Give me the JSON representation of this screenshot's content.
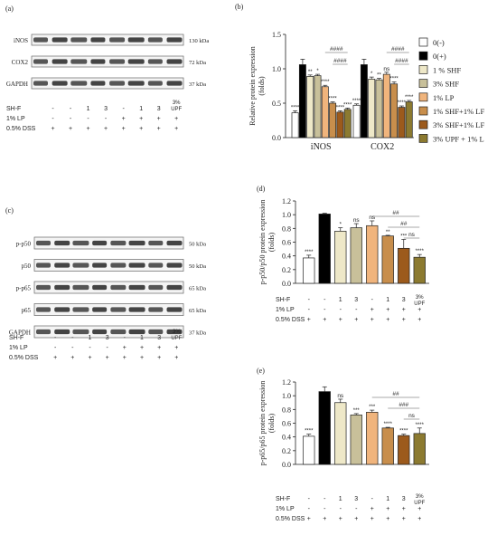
{
  "panels": {
    "a": {
      "label": "(a)",
      "bands": [
        {
          "name": "iNOS",
          "kda": "130 kDa"
        },
        {
          "name": "COX2",
          "kda": "72 kDa"
        },
        {
          "name": "GAPDH",
          "kda": "37 kDa"
        }
      ],
      "row_labels": [
        "SH-F",
        "1% LP",
        "0.5% DSS"
      ],
      "rows": [
        [
          "-",
          "-",
          "-",
          "1",
          "3",
          "-",
          "1",
          "3",
          "3%\nUPF"
        ],
        [
          "-",
          "-",
          "-",
          "-",
          "-",
          "+",
          "+",
          "+",
          "+"
        ],
        [
          "-",
          "+",
          "+",
          "+",
          "+",
          "+",
          "+",
          "+",
          "+"
        ]
      ]
    },
    "c": {
      "label": "(c)",
      "bands": [
        {
          "name": "p-p50",
          "kda": "50 kDa"
        },
        {
          "name": "p50",
          "kda": "50 kDa"
        },
        {
          "name": "p-p65",
          "kda": "65 kDa"
        },
        {
          "name": "p65",
          "kda": "65 kDa"
        },
        {
          "name": "GAPDH",
          "kda": "37 kDa"
        }
      ],
      "row_labels": [
        "SH-F",
        "1% LP",
        "0.5% DSS"
      ],
      "rows": [
        [
          "-",
          "-",
          "-",
          "1",
          "3",
          "-",
          "1",
          "3",
          "3%\nUPF"
        ],
        [
          "-",
          "-",
          "-",
          "-",
          "-",
          "+",
          "+",
          "+",
          "+"
        ],
        [
          "-",
          "+",
          "+",
          "+",
          "+",
          "+",
          "+",
          "+",
          "+"
        ]
      ]
    },
    "b": {
      "label": "(b)"
    },
    "d": {
      "label": "(d)"
    },
    "e": {
      "label": "(e)"
    }
  },
  "legend": {
    "entries": [
      "0(-)",
      "0(+)",
      "1 % SHF",
      "3% SHF",
      "1% LP",
      "1% SHF+1% LF",
      "3% SHF+1% LF",
      "3% UPF + 1% L"
    ]
  },
  "colors": [
    "#ffffff",
    "#000000",
    "#eee8c8",
    "#c8c09a",
    "#f0b47c",
    "#c88e4c",
    "#9c5a1c",
    "#8c7a30"
  ],
  "chart_data": [
    {
      "id": "b",
      "type": "bar",
      "categories": [
        "iNOS",
        "COX2"
      ],
      "ylabel": "Relative protein expression\n(folds)",
      "ylim": [
        0,
        1.5
      ],
      "yticks": [
        "0.0",
        "0.5",
        "1.0",
        "1.5"
      ],
      "series": [
        {
          "name": "0(-)",
          "values": [
            0.36,
            0.47
          ],
          "err": [
            0.03,
            0.02
          ],
          "sig": [
            "****",
            "****"
          ]
        },
        {
          "name": "0(+)",
          "values": [
            1.06,
            1.06
          ],
          "err": [
            0.08,
            0.08
          ],
          "sig": [
            "",
            ""
          ]
        },
        {
          "name": "1 % SHF",
          "values": [
            0.89,
            0.85
          ],
          "err": [
            0.02,
            0.03
          ],
          "sig": [
            "**",
            "*"
          ]
        },
        {
          "name": "3% SHF",
          "values": [
            0.9,
            0.84
          ],
          "err": [
            0.02,
            0.02
          ],
          "sig": [
            "*",
            "**"
          ]
        },
        {
          "name": "1% LP",
          "values": [
            0.74,
            0.92
          ],
          "err": [
            0.02,
            0.03
          ],
          "sig": [
            "****",
            "ns"
          ]
        },
        {
          "name": "1% SHF+1% LF",
          "values": [
            0.5,
            0.78
          ],
          "err": [
            0.02,
            0.03
          ],
          "sig": [
            "****",
            "****"
          ]
        },
        {
          "name": "3% SHF+1% LF",
          "values": [
            0.37,
            0.44
          ],
          "err": [
            0.02,
            0.02
          ],
          "sig": [
            "****",
            "****"
          ]
        },
        {
          "name": "3% UPF + 1% L",
          "values": [
            0.41,
            0.52
          ],
          "err": [
            0.02,
            0.02
          ],
          "sig": [
            "****",
            "****"
          ]
        }
      ],
      "brackets": [
        {
          "group": 0,
          "from": 4,
          "to": 7,
          "label": "####"
        },
        {
          "group": 0,
          "from": 5,
          "to": 7,
          "label": "####"
        },
        {
          "group": 1,
          "from": 4,
          "to": 7,
          "label": "####"
        },
        {
          "group": 1,
          "from": 5,
          "to": 7,
          "label": "####"
        }
      ]
    },
    {
      "id": "d",
      "type": "bar",
      "ylabel": "p-p50/p50 protein expression\n(folds)",
      "ylim": [
        0,
        1.2
      ],
      "yticks": [
        "0.0",
        "0.2",
        "0.4",
        "0.6",
        "0.8",
        "1.0",
        "1.2"
      ],
      "values": [
        0.37,
        1.01,
        0.76,
        0.81,
        0.84,
        0.69,
        0.51,
        0.38
      ],
      "err": [
        0.04,
        0.01,
        0.05,
        0.06,
        0.07,
        0.01,
        0.13,
        0.04
      ],
      "sig": [
        "****",
        "",
        "*",
        "ns",
        "ns",
        "**",
        "***",
        "****"
      ],
      "brackets": [
        {
          "from": 4,
          "to": 7,
          "label": "##"
        },
        {
          "from": 5,
          "to": 7,
          "label": "##"
        },
        {
          "from": 6,
          "to": 7,
          "label": "ns"
        }
      ]
    },
    {
      "id": "e",
      "type": "bar",
      "ylabel": "p-p65/p65 protein expression\n(folds)",
      "ylim": [
        0,
        1.2
      ],
      "yticks": [
        "0.0",
        "0.2",
        "0.4",
        "0.6",
        "0.8",
        "1.0",
        "1.2"
      ],
      "values": [
        0.41,
        1.06,
        0.9,
        0.72,
        0.76,
        0.53,
        0.42,
        0.45
      ],
      "err": [
        0.03,
        0.07,
        0.05,
        0.02,
        0.03,
        0.01,
        0.02,
        0.08
      ],
      "sig": [
        "****",
        "",
        "ns",
        "***",
        "***",
        "****",
        "****",
        "****"
      ],
      "brackets": [
        {
          "from": 4,
          "to": 7,
          "label": "##"
        },
        {
          "from": 5,
          "to": 7,
          "label": "###"
        },
        {
          "from": 6,
          "to": 7,
          "label": "ns"
        }
      ]
    }
  ]
}
